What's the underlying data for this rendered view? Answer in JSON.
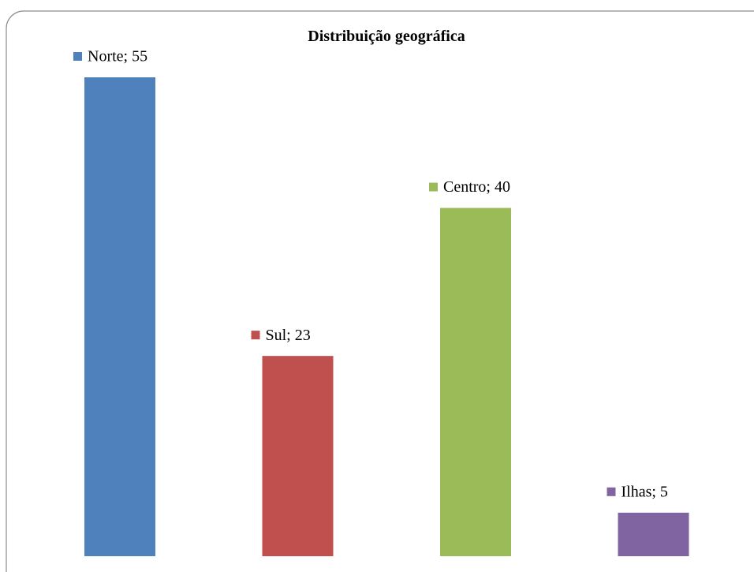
{
  "chart_data": {
    "type": "bar",
    "title": "Distribuição geográfica",
    "values": [
      55,
      23,
      40,
      5
    ],
    "value_labels": [
      "Norte; 55",
      "Sul; 23",
      "Centro; 40",
      "Ilhas; 5"
    ],
    "colors": [
      "#4f81bd",
      "#c0504d",
      "#9bbb59",
      "#8064a2"
    ]
  }
}
